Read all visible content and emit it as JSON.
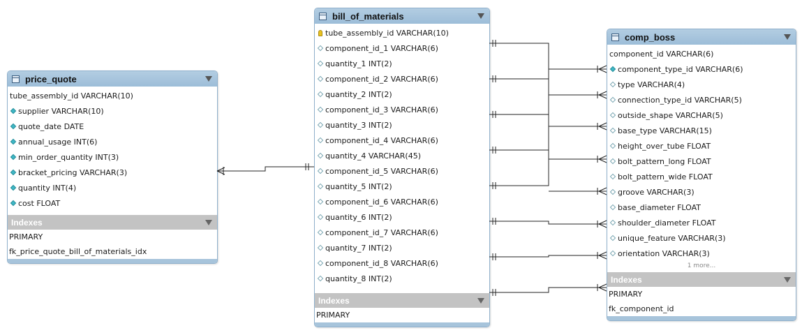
{
  "tables": {
    "price_quote": {
      "name": "price_quote",
      "columns": [
        {
          "text": "tube_assembly_id VARCHAR(10)",
          "marker": "none"
        },
        {
          "text": "supplier VARCHAR(10)",
          "marker": "filled"
        },
        {
          "text": "quote_date DATE",
          "marker": "filled"
        },
        {
          "text": "annual_usage INT(6)",
          "marker": "filled"
        },
        {
          "text": "min_order_quantity INT(3)",
          "marker": "filled"
        },
        {
          "text": "bracket_pricing VARCHAR(3)",
          "marker": "filled"
        },
        {
          "text": "quantity INT(4)",
          "marker": "filled"
        },
        {
          "text": "cost FLOAT",
          "marker": "filled"
        }
      ],
      "indexes_label": "Indexes",
      "indexes": [
        "PRIMARY",
        "fk_price_quote_bill_of_materials_idx"
      ]
    },
    "bill_of_materials": {
      "name": "bill_of_materials",
      "columns": [
        {
          "text": "tube_assembly_id VARCHAR(10)",
          "marker": "key"
        },
        {
          "text": "component_id_1 VARCHAR(6)",
          "marker": "hollow"
        },
        {
          "text": "quantity_1 INT(2)",
          "marker": "hollow"
        },
        {
          "text": "component_id_2 VARCHAR(6)",
          "marker": "hollow"
        },
        {
          "text": "quantity_2 INT(2)",
          "marker": "hollow"
        },
        {
          "text": "component_id_3 VARCHAR(6)",
          "marker": "hollow"
        },
        {
          "text": "quantity_3 INT(2)",
          "marker": "hollow"
        },
        {
          "text": "component_id_4 VARCHAR(6)",
          "marker": "hollow"
        },
        {
          "text": "quantity_4 VARCHAR(45)",
          "marker": "hollow"
        },
        {
          "text": "component_id_5 VARCHAR(6)",
          "marker": "hollow"
        },
        {
          "text": "quantity_5 INT(2)",
          "marker": "hollow"
        },
        {
          "text": "component_id_6 VARCHAR(6)",
          "marker": "hollow"
        },
        {
          "text": "quantity_6 INT(2)",
          "marker": "hollow"
        },
        {
          "text": "component_id_7 VARCHAR(6)",
          "marker": "hollow"
        },
        {
          "text": "quantity_7 INT(2)",
          "marker": "hollow"
        },
        {
          "text": "component_id_8 VARCHAR(6)",
          "marker": "hollow"
        },
        {
          "text": "quantity_8 INT(2)",
          "marker": "hollow"
        }
      ],
      "indexes_label": "Indexes",
      "indexes": [
        "PRIMARY"
      ]
    },
    "comp_boss": {
      "name": "comp_boss",
      "columns": [
        {
          "text": "component_id VARCHAR(6)",
          "marker": "none"
        },
        {
          "text": "component_type_id VARCHAR(6)",
          "marker": "filled"
        },
        {
          "text": "type VARCHAR(4)",
          "marker": "hollow"
        },
        {
          "text": "connection_type_id VARCHAR(5)",
          "marker": "hollow"
        },
        {
          "text": "outside_shape VARCHAR(5)",
          "marker": "hollow"
        },
        {
          "text": "base_type VARCHAR(15)",
          "marker": "hollow"
        },
        {
          "text": "height_over_tube FLOAT",
          "marker": "hollow"
        },
        {
          "text": "bolt_pattern_long FLOAT",
          "marker": "hollow"
        },
        {
          "text": "bolt_pattern_wide FLOAT",
          "marker": "hollow"
        },
        {
          "text": "groove VARCHAR(3)",
          "marker": "hollow"
        },
        {
          "text": "base_diameter FLOAT",
          "marker": "hollow"
        },
        {
          "text": "shoulder_diameter FLOAT",
          "marker": "hollow"
        },
        {
          "text": "unique_feature VARCHAR(3)",
          "marker": "hollow"
        },
        {
          "text": "orientation VARCHAR(3)",
          "marker": "hollow"
        }
      ],
      "more_label": "1 more...",
      "indexes_label": "Indexes",
      "indexes": [
        "PRIMARY",
        "fk_component_id"
      ]
    }
  },
  "colors": {
    "header_blue": "#9cbdd8",
    "index_header_gray": "#c3c3c3",
    "connector": "#222222"
  }
}
